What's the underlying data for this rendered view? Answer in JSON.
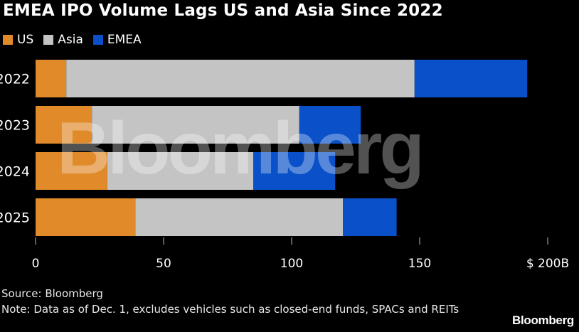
{
  "title": "EMEA IPO Volume Lags US and Asia Since 2022",
  "source": "Source: Bloomberg",
  "note": "Note: Data as of Dec. 1, excludes vehicles such as closed-end funds, SPACs and REITs",
  "brand": "Bloomberg",
  "watermark": "Bloomberg",
  "colors": {
    "US": "#e08a2a",
    "Asia": "#c4c4c4",
    "EMEA": "#0a50c8"
  },
  "chart_data": {
    "type": "bar",
    "orientation": "horizontal",
    "stacked": true,
    "categories": [
      "2022",
      "2023",
      "2024",
      "2025"
    ],
    "series": [
      {
        "name": "US",
        "values": [
          12,
          22,
          28,
          39
        ]
      },
      {
        "name": "Asia",
        "values": [
          136,
          81,
          57,
          81
        ]
      },
      {
        "name": "EMEA",
        "values": [
          44,
          24,
          32,
          21
        ]
      }
    ],
    "xlim": [
      0,
      200
    ],
    "xticks": [
      "0",
      "50",
      "100",
      "150",
      "$ 200B"
    ],
    "xtick_values": [
      0,
      50,
      100,
      150,
      200
    ],
    "legend": "top-left",
    "grid": false
  }
}
